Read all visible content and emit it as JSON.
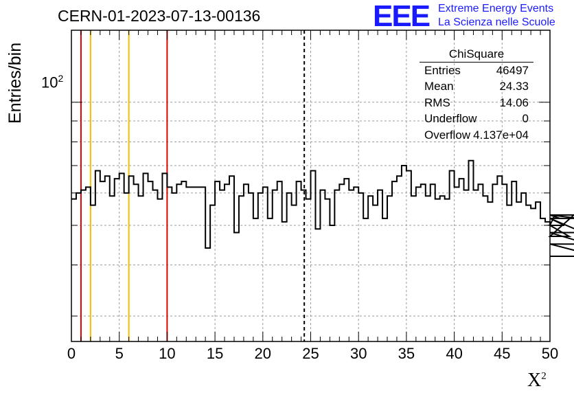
{
  "title": "CERN-01-2023-07-13-00136",
  "logo": {
    "text": "EEE",
    "line1": "Extreme Energy Events",
    "line2": "La Scienza nelle Scuole"
  },
  "colors": {
    "logo": "#1a1aff",
    "red_lines": "#e00000",
    "yellow_lines": "#f0c000",
    "grid": "#9a9a9a"
  },
  "stats": {
    "header": "ChiSquare",
    "rows": [
      {
        "key": "Entries",
        "value": "46497"
      },
      {
        "key": "Mean",
        "value": "24.33"
      },
      {
        "key": "RMS",
        "value": "14.06"
      },
      {
        "key": "Underflow",
        "value": "0"
      },
      {
        "key": "Overflow",
        "value": "4.137e+04"
      }
    ]
  },
  "chart_data": {
    "type": "step",
    "title": "CERN-01-2023-07-13-00136",
    "xlabel": "X²",
    "ylabel": "Entries/bin",
    "xlim": [
      0,
      50
    ],
    "ylim": [
      26,
      150
    ],
    "ylog": true,
    "grid": true,
    "bin_width": 0.5,
    "x_ticks": [
      "0",
      "5",
      "10",
      "15",
      "20",
      "25",
      "30",
      "35",
      "40",
      "45",
      "50"
    ],
    "y_tick_label": {
      "base": "10",
      "exp": "2",
      "value": 100
    },
    "values": [
      58,
      60,
      61,
      62,
      56,
      68,
      64,
      66,
      59,
      65,
      67,
      60,
      66,
      63,
      59,
      67,
      64,
      61,
      58,
      67,
      62,
      60,
      63,
      64,
      62,
      62,
      62,
      62,
      44,
      56,
      64,
      61,
      63,
      66,
      48,
      59,
      63,
      60,
      52,
      60,
      62,
      52,
      61,
      64,
      51,
      60,
      56,
      64,
      61,
      58,
      68,
      49,
      61,
      58,
      50,
      61,
      63,
      65,
      61,
      62,
      60,
      52,
      59,
      56,
      61,
      52,
      59,
      64,
      66,
      70,
      68,
      59,
      62,
      63,
      59,
      63,
      58,
      59,
      58,
      68,
      62,
      65,
      61,
      72,
      61,
      63,
      59,
      57,
      63,
      66,
      63,
      56,
      64,
      57,
      60,
      56,
      55,
      57,
      52,
      51,
      50,
      53,
      52,
      50,
      47,
      53,
      52,
      48,
      45,
      45,
      42
    ],
    "vertical_lines": [
      {
        "x": 1,
        "color": "red",
        "style": "solid"
      },
      {
        "x": 2,
        "color": "yellow",
        "style": "solid"
      },
      {
        "x": 6,
        "color": "yellow",
        "style": "solid"
      },
      {
        "x": 10,
        "color": "red",
        "style": "solid"
      },
      {
        "x": 24.33,
        "color": "black",
        "style": "dashed"
      }
    ]
  }
}
